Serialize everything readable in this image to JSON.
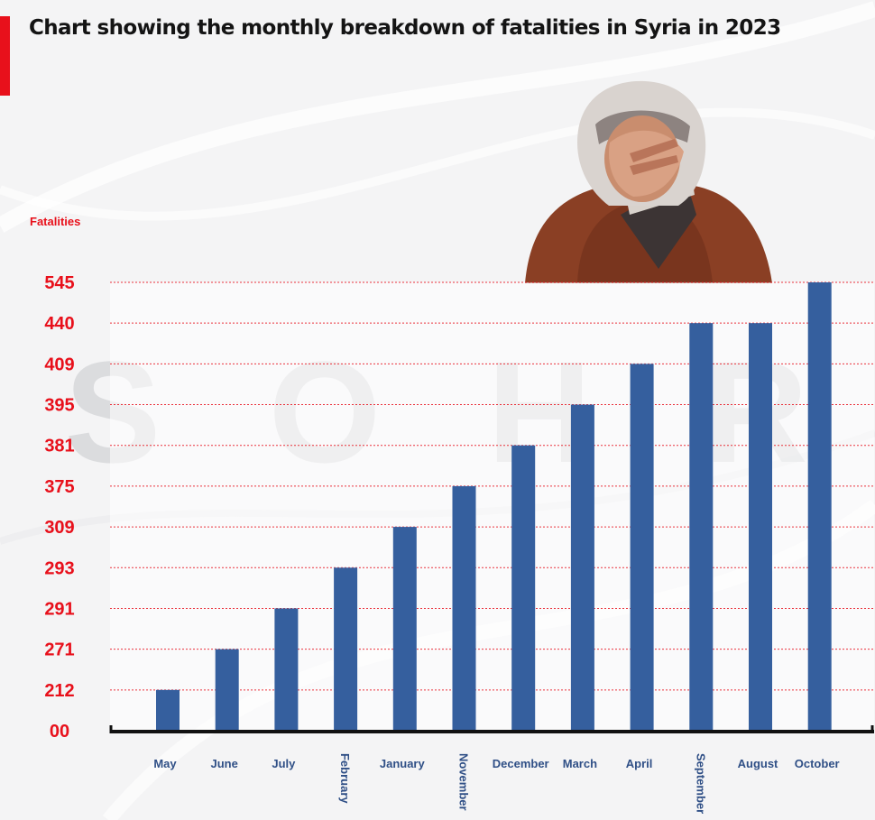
{
  "header": {
    "title": "Chart showing the monthly breakdown of fatalities in Syria in 2023"
  },
  "watermark": {
    "letters": [
      "S",
      "O",
      "H",
      "R"
    ]
  },
  "colors": {
    "accent": "#e8101b",
    "bar": "#355f9e",
    "category_text": "#2f4f86"
  },
  "icons": {
    "photo": "grieving-woman-photo"
  },
  "chart_data": {
    "type": "bar",
    "ylabel": "Fatalities",
    "xlabel": "",
    "tick_labels": [
      "00",
      "212",
      "271",
      "291",
      "293",
      "309",
      "375",
      "381",
      "395",
      "409",
      "440",
      "545"
    ],
    "categories": [
      "May",
      "June",
      "July",
      "February",
      "January",
      "November",
      "December",
      "March",
      "April",
      "September",
      "August",
      "October"
    ],
    "values": [
      212,
      271,
      291,
      293,
      309,
      375,
      381,
      395,
      409,
      440,
      440,
      545
    ],
    "rotated_categories": [
      "February",
      "November",
      "September"
    ],
    "grid": true,
    "axis_note": "y-axis ticks are evenly spaced ordinal labels, not a linear scale"
  }
}
